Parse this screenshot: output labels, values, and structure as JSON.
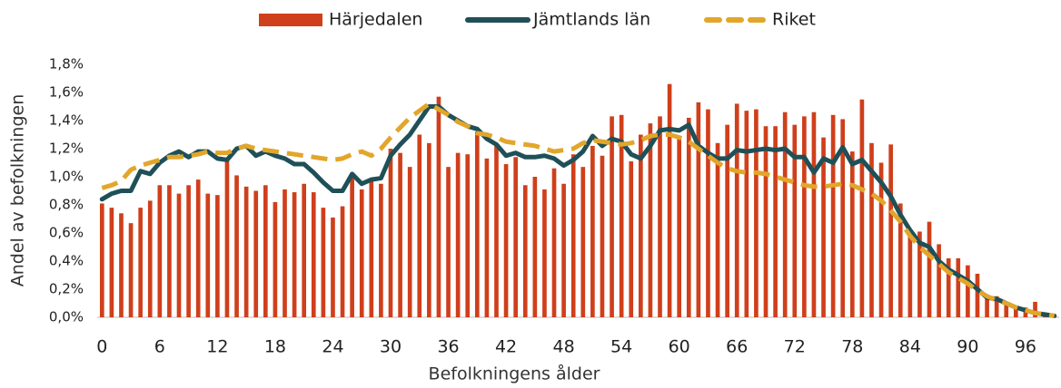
{
  "chart_data": {
    "type": "bar",
    "x_label": "Befolkningens ålder",
    "y_label": "Andel av befolkningen",
    "legend": "top",
    "categories": [
      "0",
      null,
      null,
      null,
      null,
      null,
      "6",
      null,
      null,
      null,
      null,
      null,
      "12",
      null,
      null,
      null,
      null,
      null,
      "18",
      null,
      null,
      null,
      null,
      null,
      "24",
      null,
      null,
      null,
      null,
      null,
      "30",
      null,
      null,
      null,
      null,
      null,
      "36",
      null,
      null,
      null,
      null,
      null,
      "42",
      null,
      null,
      null,
      null,
      null,
      "48",
      null,
      null,
      null,
      null,
      null,
      "54",
      null,
      null,
      null,
      null,
      null,
      "60",
      null,
      null,
      null,
      null,
      null,
      "66",
      null,
      null,
      null,
      null,
      null,
      "72",
      null,
      null,
      null,
      null,
      null,
      "78",
      null,
      null,
      null,
      null,
      null,
      "84",
      null,
      null,
      null,
      null,
      null,
      "90",
      null,
      null,
      null,
      null,
      null,
      "96",
      null,
      null,
      null
    ],
    "ylim": [
      0,
      1.8
    ],
    "yticks": [
      {
        "value": 0,
        "label": "0,0%"
      },
      {
        "value": 0.2,
        "label": "0,2%"
      },
      {
        "value": 0.4,
        "label": "0,4%"
      },
      {
        "value": 0.6,
        "label": "0,6%"
      },
      {
        "value": 0.8,
        "label": "0,8%"
      },
      {
        "value": 1.0,
        "label": "1,0%"
      },
      {
        "value": 1.2,
        "label": "1,2%"
      },
      {
        "value": 1.4,
        "label": "1,4%"
      },
      {
        "value": 1.6,
        "label": "1,6%"
      },
      {
        "value": 1.8,
        "label": "1,8%"
      }
    ],
    "series": [
      {
        "name": "Härjedalen",
        "type": "bar",
        "color": "#cf3f1b",
        "values": [
          0.81,
          0.78,
          0.74,
          0.67,
          0.78,
          0.83,
          0.94,
          0.94,
          0.88,
          0.94,
          0.98,
          0.88,
          0.87,
          1.12,
          1.01,
          0.93,
          0.9,
          0.94,
          0.82,
          0.91,
          0.89,
          0.95,
          0.89,
          0.78,
          0.71,
          0.79,
          1.01,
          0.91,
          0.97,
          0.95,
          1.2,
          1.17,
          1.07,
          1.3,
          1.24,
          1.57,
          1.07,
          1.17,
          1.16,
          1.32,
          1.13,
          1.22,
          1.09,
          1.14,
          0.94,
          1.0,
          0.91,
          1.06,
          0.95,
          1.16,
          1.07,
          1.22,
          1.15,
          1.43,
          1.44,
          1.11,
          1.3,
          1.38,
          1.43,
          1.66,
          1.27,
          1.42,
          1.53,
          1.48,
          1.24,
          1.37,
          1.52,
          1.47,
          1.48,
          1.36,
          1.36,
          1.46,
          1.37,
          1.43,
          1.46,
          1.28,
          1.44,
          1.41,
          1.18,
          1.55,
          1.24,
          1.1,
          1.23,
          0.81,
          0.58,
          0.61,
          0.68,
          0.52,
          0.42,
          0.42,
          0.37,
          0.31,
          0.15,
          0.15,
          0.1,
          0.07,
          0.07,
          0.11,
          0.03,
          0.02
        ]
      },
      {
        "name": "Jämtlands län",
        "type": "line",
        "dashed": false,
        "color": "#1f5058",
        "values": [
          0.84,
          0.88,
          0.9,
          0.9,
          1.04,
          1.02,
          1.1,
          1.15,
          1.18,
          1.14,
          1.18,
          1.18,
          1.13,
          1.12,
          1.2,
          1.22,
          1.15,
          1.18,
          1.15,
          1.13,
          1.09,
          1.09,
          1.03,
          0.96,
          0.9,
          0.9,
          1.02,
          0.95,
          0.98,
          0.99,
          1.15,
          1.23,
          1.3,
          1.4,
          1.5,
          1.5,
          1.44,
          1.4,
          1.36,
          1.34,
          1.27,
          1.23,
          1.15,
          1.17,
          1.14,
          1.14,
          1.15,
          1.13,
          1.08,
          1.12,
          1.18,
          1.29,
          1.22,
          1.27,
          1.25,
          1.16,
          1.13,
          1.22,
          1.33,
          1.34,
          1.33,
          1.37,
          1.22,
          1.17,
          1.13,
          1.13,
          1.19,
          1.18,
          1.19,
          1.2,
          1.19,
          1.2,
          1.14,
          1.14,
          1.03,
          1.13,
          1.1,
          1.21,
          1.09,
          1.12,
          1.04,
          0.96,
          0.86,
          0.73,
          0.62,
          0.53,
          0.5,
          0.4,
          0.34,
          0.3,
          0.26,
          0.2,
          0.14,
          0.13,
          0.1,
          0.07,
          0.05,
          0.03,
          0.02,
          0.01
        ]
      },
      {
        "name": "Riket",
        "type": "line",
        "dashed": true,
        "color": "#e2a62b",
        "values": [
          0.92,
          0.94,
          0.97,
          1.05,
          1.08,
          1.1,
          1.12,
          1.14,
          1.14,
          1.15,
          1.16,
          1.18,
          1.17,
          1.17,
          1.2,
          1.22,
          1.2,
          1.19,
          1.18,
          1.17,
          1.16,
          1.15,
          1.14,
          1.13,
          1.12,
          1.13,
          1.16,
          1.18,
          1.15,
          1.2,
          1.28,
          1.35,
          1.42,
          1.47,
          1.52,
          1.48,
          1.44,
          1.39,
          1.36,
          1.31,
          1.3,
          1.28,
          1.25,
          1.24,
          1.23,
          1.22,
          1.2,
          1.18,
          1.19,
          1.2,
          1.24,
          1.26,
          1.25,
          1.24,
          1.23,
          1.24,
          1.26,
          1.29,
          1.3,
          1.3,
          1.28,
          1.25,
          1.2,
          1.15,
          1.1,
          1.06,
          1.04,
          1.03,
          1.03,
          1.02,
          1.0,
          0.98,
          0.96,
          0.94,
          0.93,
          0.93,
          0.94,
          0.95,
          0.94,
          0.91,
          0.88,
          0.83,
          0.76,
          0.68,
          0.58,
          0.5,
          0.44,
          0.38,
          0.32,
          0.28,
          0.24,
          0.19,
          0.15,
          0.12,
          0.1,
          0.07,
          0.05,
          0.03,
          0.02,
          0.01
        ]
      }
    ]
  }
}
